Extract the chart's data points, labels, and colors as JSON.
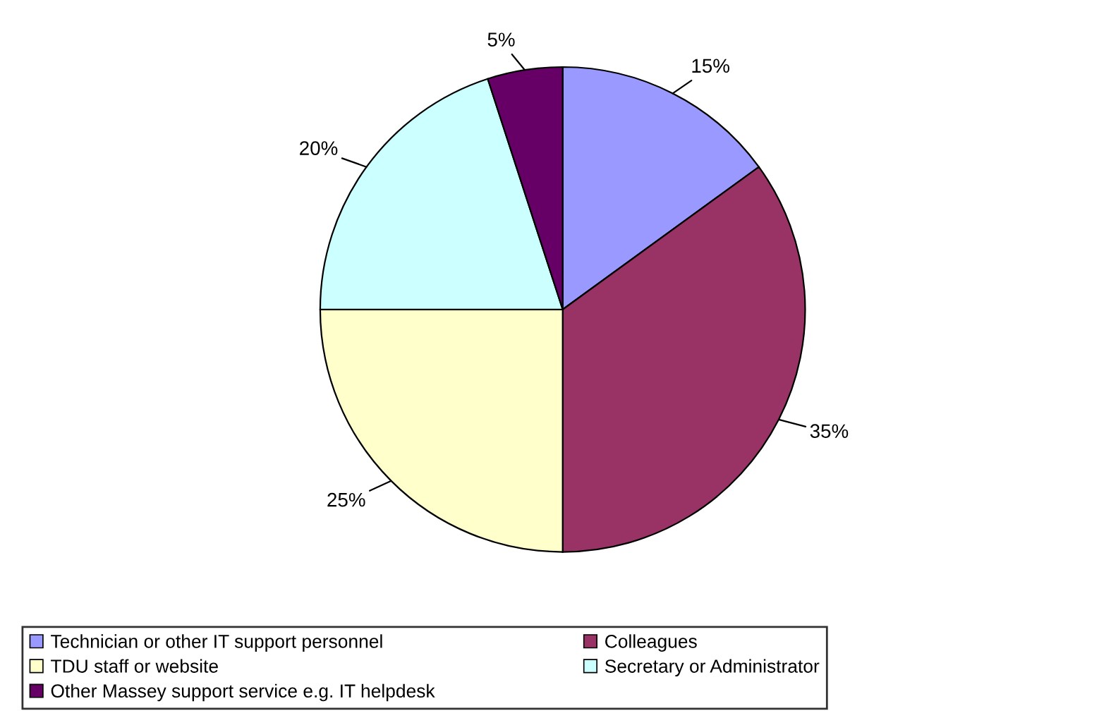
{
  "chart_data": {
    "type": "pie",
    "categories": [
      "Technician or other IT support personnel",
      "Colleagues",
      "TDU staff or website",
      "Secretary or Administrator",
      "Other Massey support service e.g. IT helpdesk"
    ],
    "values": [
      15,
      35,
      25,
      20,
      5
    ],
    "colors": [
      "#9999ff",
      "#993366",
      "#ffffcc",
      "#ccffff",
      "#660066"
    ],
    "value_labels": [
      "15%",
      "35%",
      "25%",
      "20%",
      "5%"
    ],
    "legend": "bottom"
  }
}
